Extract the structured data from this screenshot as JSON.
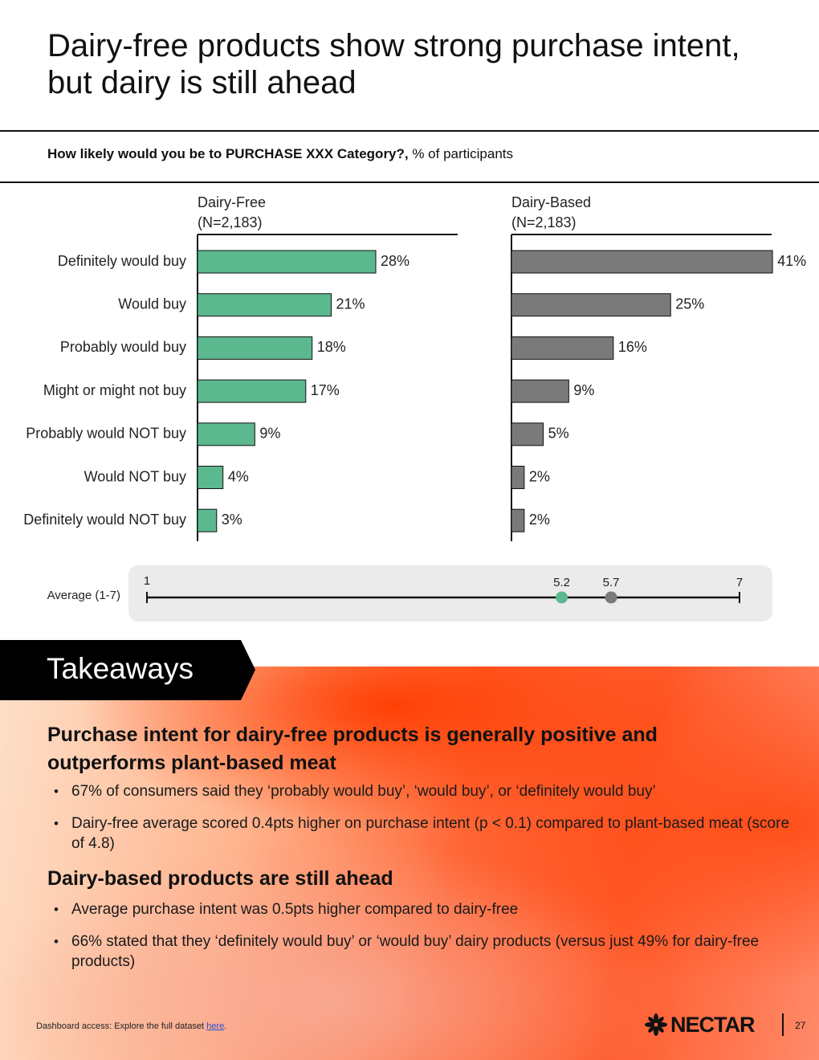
{
  "title": "Dairy-free products show strong purchase intent, but dairy is still ahead",
  "question": {
    "bold": "How likely would you be to PURCHASE XXX Category?,",
    "rest": " % of participants"
  },
  "chart_data": {
    "type": "bar",
    "orientation": "horizontal",
    "categories": [
      "Definitely would buy",
      "Would buy",
      "Probably would buy",
      "Might or might not buy",
      "Probably would NOT buy",
      "Would NOT buy",
      "Definitely would NOT buy"
    ],
    "series": [
      {
        "name": "Dairy-Free",
        "n_label": "(N=2,183)",
        "color": "#5cb88e",
        "values": [
          28,
          21,
          18,
          17,
          9,
          4,
          3
        ]
      },
      {
        "name": "Dairy-Based",
        "n_label": "(N=2,183)",
        "color": "#7a7a7a",
        "values": [
          41,
          25,
          16,
          9,
          5,
          2,
          2
        ]
      }
    ],
    "value_suffix": "%",
    "xlim": [
      0,
      42
    ]
  },
  "average": {
    "label": "Average (1-7)",
    "min": 1,
    "max": 7,
    "min_label": "1",
    "max_label": "7",
    "points": [
      {
        "value": 5.2,
        "label": "5.2",
        "color": "#5cb88e"
      },
      {
        "value": 5.7,
        "label": "5.7",
        "color": "#7a7a7a"
      }
    ]
  },
  "takeaways": {
    "banner": "Takeaways",
    "sections": [
      {
        "heading": "Purchase intent for dairy-free products is generally positive and outperforms plant-based meat",
        "bullets": [
          "67% of consumers said they ‘probably would buy’, ‘would buy’, or ‘definitely would buy’",
          "Dairy-free average scored 0.4pts higher on purchase intent (p < 0.1) compared to plant-based meat (score of 4.8)"
        ]
      },
      {
        "heading": "Dairy-based products are still ahead",
        "bullets": [
          "Average purchase intent was 0.5pts higher compared to dairy-free",
          "66% stated that they ‘definitely would buy’ or ‘would buy’ dairy products (versus just 49% for dairy-free products)"
        ]
      }
    ]
  },
  "footer": {
    "text": "Dashboard access: Explore the full dataset ",
    "link": "here",
    "period": "."
  },
  "logo": {
    "text": "NECTAR",
    "icon": "asterisk-flower-icon"
  },
  "page_number": "27"
}
